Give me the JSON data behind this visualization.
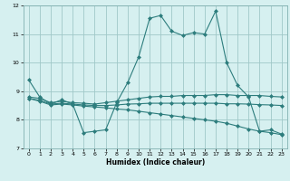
{
  "xlabel": "Humidex (Indice chaleur)",
  "bg_color": "#d6f0f0",
  "grid_color": "#a0c8c8",
  "line_color": "#2d7d7d",
  "xlim": [
    -0.5,
    23.5
  ],
  "ylim": [
    7,
    12
  ],
  "yticks": [
    7,
    8,
    9,
    10,
    11,
    12
  ],
  "xticks": [
    0,
    1,
    2,
    3,
    4,
    5,
    6,
    7,
    8,
    9,
    10,
    11,
    12,
    13,
    14,
    15,
    16,
    17,
    18,
    19,
    20,
    21,
    22,
    23
  ],
  "series1_x": [
    0,
    1,
    2,
    3,
    4,
    5,
    6,
    7,
    8,
    9,
    10,
    11,
    12,
    13,
    14,
    15,
    16,
    17,
    18,
    19,
    20,
    21,
    22,
    23
  ],
  "series1_y": [
    9.4,
    8.8,
    8.55,
    8.7,
    8.55,
    7.55,
    7.6,
    7.65,
    8.6,
    9.3,
    10.2,
    11.55,
    11.65,
    11.1,
    10.95,
    11.05,
    11.0,
    11.8,
    10.0,
    9.2,
    8.8,
    7.6,
    7.65,
    7.5
  ],
  "series2_x": [
    0,
    1,
    2,
    3,
    4,
    5,
    6,
    7,
    8,
    9,
    10,
    11,
    12,
    13,
    14,
    15,
    16,
    17,
    18,
    19,
    20,
    21,
    22,
    23
  ],
  "series2_y": [
    8.8,
    8.75,
    8.6,
    8.65,
    8.6,
    8.58,
    8.55,
    8.6,
    8.65,
    8.7,
    8.75,
    8.8,
    8.82,
    8.82,
    8.85,
    8.85,
    8.85,
    8.88,
    8.88,
    8.85,
    8.85,
    8.85,
    8.82,
    8.8
  ],
  "series3_x": [
    0,
    1,
    2,
    3,
    4,
    5,
    6,
    7,
    8,
    9,
    10,
    11,
    12,
    13,
    14,
    15,
    16,
    17,
    18,
    19,
    20,
    21,
    22,
    23
  ],
  "series3_y": [
    8.75,
    8.68,
    8.55,
    8.58,
    8.55,
    8.52,
    8.5,
    8.5,
    8.52,
    8.55,
    8.56,
    8.58,
    8.58,
    8.58,
    8.58,
    8.58,
    8.58,
    8.58,
    8.56,
    8.56,
    8.55,
    8.53,
    8.52,
    8.5
  ],
  "series4_x": [
    0,
    1,
    2,
    3,
    4,
    5,
    6,
    7,
    8,
    9,
    10,
    11,
    12,
    13,
    14,
    15,
    16,
    17,
    18,
    19,
    20,
    21,
    22,
    23
  ],
  "series4_y": [
    8.75,
    8.65,
    8.52,
    8.55,
    8.52,
    8.48,
    8.45,
    8.42,
    8.38,
    8.35,
    8.3,
    8.25,
    8.2,
    8.15,
    8.1,
    8.05,
    8.0,
    7.95,
    7.88,
    7.78,
    7.68,
    7.6,
    7.55,
    7.48
  ]
}
